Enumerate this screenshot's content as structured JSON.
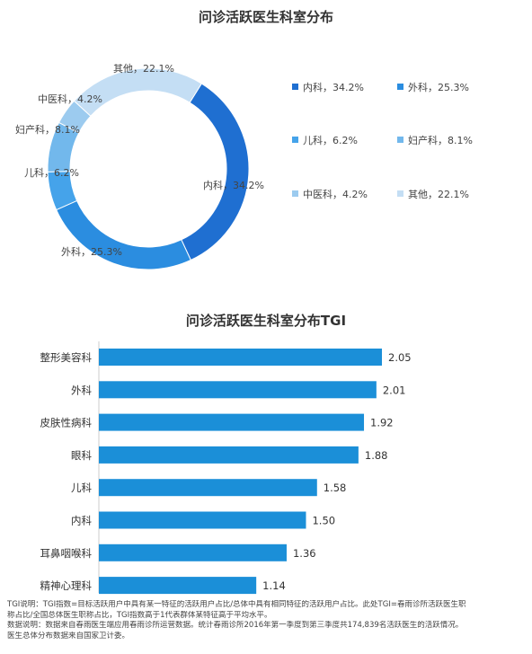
{
  "chart_data": [
    {
      "type": "pie",
      "title": "问诊活跃医生科室分布",
      "legend_position": "right",
      "slices": [
        {
          "label": "内科",
          "value": 34.2,
          "text": "内科，34.2%",
          "color": "#1f6fd1"
        },
        {
          "label": "外科",
          "value": 25.3,
          "text": "外科，25.3%",
          "color": "#2b8de0"
        },
        {
          "label": "儿科",
          "value": 6.2,
          "text": "儿科，6.2%",
          "color": "#45a3ea"
        },
        {
          "label": "妇产科",
          "value": 8.1,
          "text": "妇产科，8.1%",
          "color": "#72b8ec"
        },
        {
          "label": "中医科",
          "value": 4.2,
          "text": "中医科，4.2%",
          "color": "#9ccbef"
        },
        {
          "label": "其他",
          "value": 22.1,
          "text": "其他，22.1%",
          "color": "#c4def4"
        }
      ],
      "slice_labels": [
        "内科，34.2%",
        "外科，25.3%",
        "儿科，6.2%",
        "妇产科，8.1%",
        "中医科，4.2%",
        "其他，22.1%"
      ]
    },
    {
      "type": "bar",
      "orientation": "horizontal",
      "title": "问诊活跃医生科室分布TGI",
      "categories": [
        "整形美容科",
        "外科",
        "皮肤性病科",
        "眼科",
        "儿科",
        "内科",
        "耳鼻咽喉科",
        "精神心理科"
      ],
      "values": [
        2.05,
        2.01,
        1.92,
        1.88,
        1.58,
        1.5,
        1.36,
        1.14
      ],
      "value_labels": [
        "2.05",
        "2.01",
        "1.92",
        "1.88",
        "1.58",
        "1.50",
        "1.36",
        "1.14"
      ],
      "xlim": [
        0,
        2.15
      ],
      "color": "#1b8fd8"
    }
  ],
  "colors": {
    "bar": "#1b8fd8",
    "text": "#333333",
    "axis": "#cccccc"
  },
  "notes": [
    "TGI说明：TGI指数=目标活跃用户中具有某一特征的活跃用户占比/总体中具有相同特征的活跃用户占比。此处TGI=春雨诊所活跃医生职",
    "称占比/全国总体医生职称占比，TGI指数高于1代表群体某特征高于平均水平。",
    "数据说明：数据来自春雨医生端应用春雨诊所运营数据。统计春雨诊所2016年第一季度到第三季度共174,839名活跃医生的活跃情况。",
    "医生总体分布数据来自国家卫计委。"
  ]
}
